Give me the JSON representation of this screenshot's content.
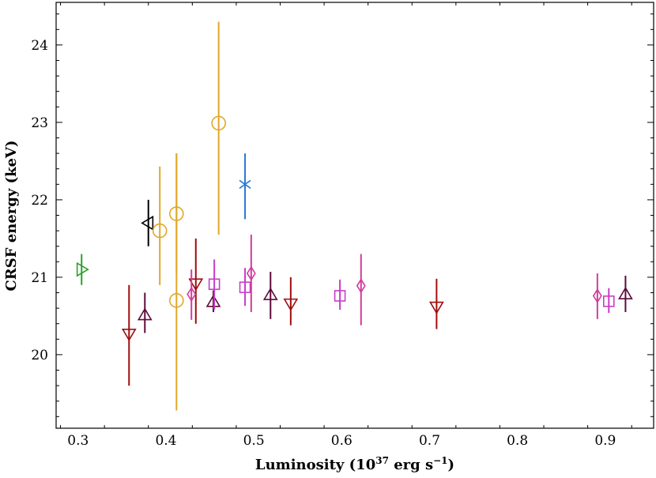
{
  "chart_data": {
    "type": "scatter",
    "xlabel": "Luminosity (10",
    "xlabel_sup": "37",
    "xlabel_unit": "erg s",
    "xlabel_unit_sup": "−1",
    "xlabel_close": ")",
    "ylabel": "CRSF energy (keV)",
    "xlim": [
      0.275,
      0.955
    ],
    "ylim": [
      19.05,
      24.55
    ],
    "x_ticks": [
      0.3,
      0.4,
      0.5,
      0.6,
      0.7,
      0.8,
      0.9
    ],
    "x_tick_labels": [
      "0.3",
      "0.4",
      "0.5",
      "0.6",
      "0.7",
      "0.8",
      "0.9"
    ],
    "y_ticks": [
      20,
      21,
      22,
      23,
      24
    ],
    "y_tick_labels": [
      "20",
      "21",
      "22",
      "23",
      "24"
    ],
    "grid": false,
    "series": [
      {
        "marker": "triangle-right",
        "color": "#2ca02c",
        "points": [
          {
            "x": 0.304,
            "y": 21.1,
            "lo": 20.9,
            "hi": 21.3
          }
        ]
      },
      {
        "marker": "triangle-left",
        "color": "#000000",
        "points": [
          {
            "x": 0.38,
            "y": 21.7,
            "lo": 21.4,
            "hi": 22.0
          }
        ]
      },
      {
        "marker": "x-star",
        "color": "#2a7ad6",
        "points": [
          {
            "x": 0.49,
            "y": 22.2,
            "lo": 21.75,
            "hi": 22.6
          }
        ]
      },
      {
        "marker": "circle",
        "color": "#e0a829",
        "points": [
          {
            "x": 0.393,
            "y": 21.6,
            "lo": 20.9,
            "hi": 22.43
          },
          {
            "x": 0.412,
            "y": 21.82,
            "lo": 21.05,
            "hi": 22.6
          },
          {
            "x": 0.412,
            "y": 20.7,
            "lo": 19.28,
            "hi": 22.6
          },
          {
            "x": 0.46,
            "y": 22.99,
            "lo": 21.55,
            "hi": 24.3
          }
        ]
      },
      {
        "marker": "triangle-down",
        "color": "#a00d0d",
        "points": [
          {
            "x": 0.358,
            "y": 20.27,
            "lo": 19.6,
            "hi": 20.9
          },
          {
            "x": 0.434,
            "y": 20.92,
            "lo": 20.4,
            "hi": 21.5
          },
          {
            "x": 0.542,
            "y": 20.66,
            "lo": 20.38,
            "hi": 21.0
          },
          {
            "x": 0.708,
            "y": 20.62,
            "lo": 20.33,
            "hi": 20.98
          }
        ]
      },
      {
        "marker": "triangle-up",
        "color": "#5e0a3a",
        "points": [
          {
            "x": 0.376,
            "y": 20.51,
            "lo": 20.28,
            "hi": 20.8
          },
          {
            "x": 0.454,
            "y": 20.68,
            "lo": 20.55,
            "hi": 20.83
          },
          {
            "x": 0.519,
            "y": 20.77,
            "lo": 20.46,
            "hi": 21.07
          },
          {
            "x": 0.923,
            "y": 20.78,
            "lo": 20.55,
            "hi": 21.02
          }
        ]
      },
      {
        "marker": "square",
        "color": "#c73ec9",
        "points": [
          {
            "x": 0.455,
            "y": 20.91,
            "lo": 20.58,
            "hi": 21.23
          },
          {
            "x": 0.49,
            "y": 20.87,
            "lo": 20.63,
            "hi": 21.12
          },
          {
            "x": 0.598,
            "y": 20.76,
            "lo": 20.58,
            "hi": 20.97
          },
          {
            "x": 0.904,
            "y": 20.69,
            "lo": 20.54,
            "hi": 20.86
          }
        ]
      },
      {
        "marker": "diamond",
        "color": "#d13b9c",
        "points": [
          {
            "x": 0.429,
            "y": 20.78,
            "lo": 20.45,
            "hi": 21.1
          },
          {
            "x": 0.497,
            "y": 21.05,
            "lo": 20.55,
            "hi": 21.55
          },
          {
            "x": 0.622,
            "y": 20.89,
            "lo": 20.38,
            "hi": 21.3
          },
          {
            "x": 0.891,
            "y": 20.76,
            "lo": 20.46,
            "hi": 21.05
          }
        ]
      }
    ]
  }
}
